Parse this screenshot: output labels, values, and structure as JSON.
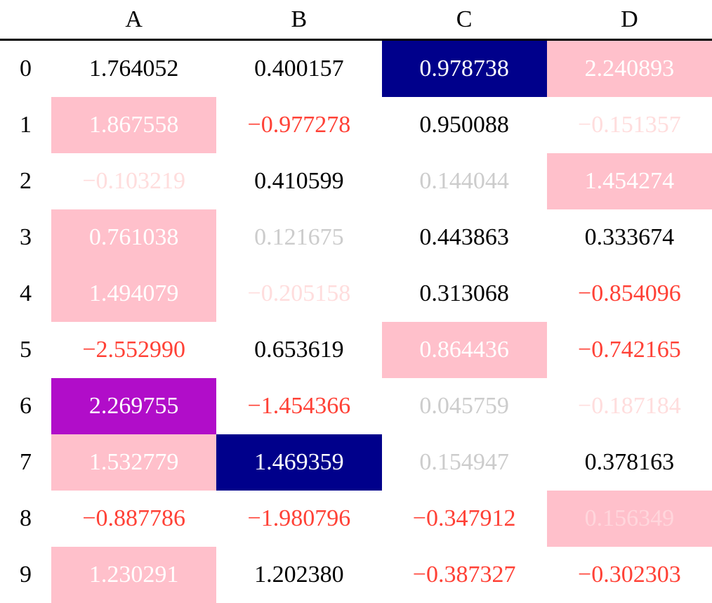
{
  "table": {
    "columns": [
      "A",
      "B",
      "C",
      "D"
    ],
    "index": [
      "0",
      "1",
      "2",
      "3",
      "4",
      "5",
      "6",
      "7",
      "8",
      "9"
    ],
    "colors": {
      "pink": "#ffc0cb",
      "navy": "#00008b",
      "purple": "#b10dc9",
      "neg": "#ff4136",
      "faint_neg": "#ffdddd",
      "faint_pos": "#cccccc",
      "text": "#000000",
      "white": "#ffffff",
      "faint_pink": "#ffd6dc"
    },
    "rows": [
      [
        {
          "v": "1.764052"
        },
        {
          "v": "0.400157"
        },
        {
          "v": "0.978738",
          "bg": "navy",
          "fg": "white"
        },
        {
          "v": "2.240893",
          "bg": "pink",
          "fg": "white"
        }
      ],
      [
        {
          "v": "1.867558",
          "bg": "pink",
          "fg": "white"
        },
        {
          "v": "−0.977278",
          "fg": "neg"
        },
        {
          "v": "0.950088"
        },
        {
          "v": "−0.151357",
          "fg": "faint_neg"
        }
      ],
      [
        {
          "v": "−0.103219",
          "fg": "faint_neg"
        },
        {
          "v": "0.410599"
        },
        {
          "v": "0.144044",
          "fg": "faint_pos"
        },
        {
          "v": "1.454274",
          "bg": "pink",
          "fg": "white"
        }
      ],
      [
        {
          "v": "0.761038",
          "bg": "pink",
          "fg": "white"
        },
        {
          "v": "0.121675",
          "fg": "faint_pos"
        },
        {
          "v": "0.443863"
        },
        {
          "v": "0.333674"
        }
      ],
      [
        {
          "v": "1.494079",
          "bg": "pink",
          "fg": "white"
        },
        {
          "v": "−0.205158",
          "fg": "faint_neg"
        },
        {
          "v": "0.313068"
        },
        {
          "v": "−0.854096",
          "fg": "neg"
        }
      ],
      [
        {
          "v": "−2.552990",
          "fg": "neg"
        },
        {
          "v": "0.653619"
        },
        {
          "v": "0.864436",
          "bg": "pink",
          "fg": "white"
        },
        {
          "v": "−0.742165",
          "fg": "neg"
        }
      ],
      [
        {
          "v": "2.269755",
          "bg": "purple",
          "fg": "white"
        },
        {
          "v": "−1.454366",
          "fg": "neg"
        },
        {
          "v": "0.045759",
          "fg": "faint_pos"
        },
        {
          "v": "−0.187184",
          "fg": "faint_neg"
        }
      ],
      [
        {
          "v": "1.532779",
          "bg": "pink",
          "fg": "white"
        },
        {
          "v": "1.469359",
          "bg": "navy",
          "fg": "white"
        },
        {
          "v": "0.154947",
          "fg": "faint_pos"
        },
        {
          "v": "0.378163"
        }
      ],
      [
        {
          "v": "−0.887786",
          "fg": "neg"
        },
        {
          "v": "−1.980796",
          "fg": "neg"
        },
        {
          "v": "−0.347912",
          "fg": "neg"
        },
        {
          "v": "0.156349",
          "bg": "pink",
          "fg": "faint_pink"
        }
      ],
      [
        {
          "v": "1.230291",
          "bg": "pink",
          "fg": "white"
        },
        {
          "v": "1.202380"
        },
        {
          "v": "−0.387327",
          "fg": "neg"
        },
        {
          "v": "−0.302303",
          "fg": "neg"
        }
      ]
    ]
  }
}
